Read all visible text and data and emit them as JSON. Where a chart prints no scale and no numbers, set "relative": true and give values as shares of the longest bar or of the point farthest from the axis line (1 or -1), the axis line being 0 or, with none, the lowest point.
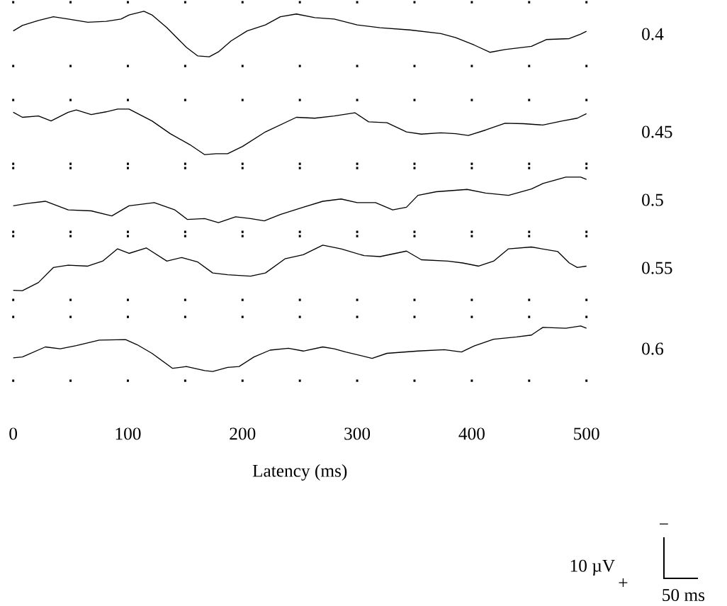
{
  "chart_data": [
    {
      "type": "line",
      "relative": true,
      "xlim": [
        0,
        500
      ],
      "xticks": [
        0,
        {
          "value": 50,
          "label": null
        },
        100,
        {
          "value": 150,
          "label": null
        },
        200,
        {
          "value": 250,
          "label": null
        },
        300,
        {
          "value": 350,
          "label": null
        },
        400,
        {
          "value": 450,
          "label": null
        },
        500
      ],
      "tick_labels": false,
      "series": [
        {
          "name": "0.4",
          "color": "#000000",
          "x": [
            0,
            8,
            22,
            35,
            48,
            65,
            81,
            94,
            101,
            114,
            121,
            134,
            151,
            161,
            171,
            179,
            190,
            204,
            220,
            233,
            247,
            263,
            280,
            300,
            320,
            346,
            373,
            386,
            402,
            416,
            429,
            452,
            465,
            485,
            495,
            500
          ],
          "values": [
            0.57,
            0.69,
            0.8,
            0.88,
            0.83,
            0.76,
            0.78,
            0.83,
            0.92,
            1,
            0.92,
            0.64,
            0.21,
            0.02,
            0,
            0.11,
            0.35,
            0.57,
            0.7,
            0.88,
            0.94,
            0.86,
            0.83,
            0.7,
            0.64,
            0.59,
            0.51,
            0.42,
            0.26,
            0.1,
            0.16,
            0.23,
            0.38,
            0.4,
            0.5,
            0.56
          ]
        }
      ]
    },
    {
      "type": "line",
      "relative": true,
      "xlim": [
        0,
        500
      ],
      "xticks": [
        0,
        {
          "value": 50,
          "label": null
        },
        100,
        {
          "value": 150,
          "label": null
        },
        200,
        {
          "value": 250,
          "label": null
        },
        300,
        {
          "value": 350,
          "label": null
        },
        400,
        {
          "value": 450,
          "label": null
        },
        500
      ],
      "tick_labels": false,
      "series": [
        {
          "name": "0.45",
          "color": "#000000",
          "x": [
            0,
            8,
            22,
            33,
            48,
            55,
            68,
            81,
            91,
            101,
            121,
            137,
            154,
            167,
            177,
            187,
            200,
            220,
            247,
            263,
            280,
            298,
            310,
            326,
            343,
            356,
            373,
            386,
            397,
            412,
            429,
            445,
            462,
            479,
            492,
            500
          ],
          "values": [
            0.93,
            0.82,
            0.85,
            0.74,
            0.93,
            0.98,
            0.88,
            0.94,
            1,
            1,
            0.74,
            0.46,
            0.22,
            0,
            0.02,
            0.02,
            0.18,
            0.5,
            0.82,
            0.8,
            0.85,
            0.92,
            0.72,
            0.7,
            0.5,
            0.45,
            0.48,
            0.46,
            0.42,
            0.54,
            0.69,
            0.68,
            0.65,
            0.74,
            0.8,
            0.9
          ]
        }
      ]
    },
    {
      "type": "line",
      "relative": true,
      "xlim": [
        0,
        500
      ],
      "xticks": [
        0,
        {
          "value": 50,
          "label": null
        },
        100,
        {
          "value": 150,
          "label": null
        },
        200,
        {
          "value": 250,
          "label": null
        },
        300,
        {
          "value": 350,
          "label": null
        },
        400,
        {
          "value": 450,
          "label": null
        },
        500
      ],
      "tick_labels": false,
      "series": [
        {
          "name": "0.5",
          "color": "#000000",
          "x": [
            0,
            12,
            28,
            48,
            68,
            86,
            101,
            123,
            141,
            152,
            167,
            179,
            194,
            207,
            219,
            233,
            253,
            270,
            286,
            300,
            316,
            331,
            343,
            353,
            369,
            396,
            412,
            432,
            452,
            462,
            482,
            495,
            500
          ],
          "values": [
            0.37,
            0.42,
            0.47,
            0.28,
            0.26,
            0.15,
            0.37,
            0.44,
            0.28,
            0.07,
            0.09,
            0,
            0.13,
            0.09,
            0.04,
            0.18,
            0.34,
            0.47,
            0.52,
            0.44,
            0.44,
            0.28,
            0.34,
            0.6,
            0.68,
            0.73,
            0.65,
            0.6,
            0.74,
            0.86,
            1,
            1,
            0.95
          ]
        }
      ]
    },
    {
      "type": "line",
      "relative": true,
      "xlim": [
        0,
        500
      ],
      "xticks": [
        0,
        {
          "value": 50,
          "label": null
        },
        100,
        {
          "value": 150,
          "label": null
        },
        200,
        {
          "value": 250,
          "label": null
        },
        300,
        {
          "value": 350,
          "label": null
        },
        400,
        {
          "value": 450,
          "label": null
        },
        500
      ],
      "tick_labels": false,
      "series": [
        {
          "name": "0.55",
          "color": "#000000",
          "x": [
            0,
            8,
            22,
            35,
            48,
            65,
            78,
            91,
            101,
            116,
            134,
            147,
            161,
            174,
            187,
            207,
            220,
            237,
            253,
            270,
            286,
            306,
            320,
            343,
            356,
            379,
            392,
            406,
            419,
            432,
            452,
            475,
            485,
            492,
            500
          ],
          "values": [
            0.01,
            0,
            0.18,
            0.51,
            0.56,
            0.54,
            0.65,
            0.92,
            0.82,
            0.94,
            0.65,
            0.73,
            0.63,
            0.39,
            0.35,
            0.32,
            0.39,
            0.7,
            0.79,
            1,
            0.92,
            0.77,
            0.75,
            0.87,
            0.68,
            0.65,
            0.61,
            0.54,
            0.65,
            0.92,
            0.96,
            0.86,
            0.61,
            0.51,
            0.54
          ]
        }
      ]
    },
    {
      "type": "line",
      "relative": true,
      "xlim": [
        0,
        500
      ],
      "xticks": [
        0,
        {
          "value": 50,
          "label": null
        },
        100,
        {
          "value": 150,
          "label": null
        },
        200,
        {
          "value": 250,
          "label": null
        },
        300,
        {
          "value": 350,
          "label": null
        },
        400,
        {
          "value": 450,
          "label": null
        },
        500
      ],
      "tick_labels": "x",
      "xlabel": "Latency (ms)",
      "annotations": [
        "10 µV",
        "+",
        "−",
        "50 ms"
      ],
      "series": [
        {
          "name": "0.6",
          "color": "#000000",
          "x": [
            0,
            8,
            28,
            41,
            55,
            75,
            98,
            108,
            121,
            139,
            151,
            167,
            174,
            187,
            197,
            210,
            224,
            240,
            253,
            270,
            280,
            290,
            313,
            326,
            353,
            376,
            391,
            402,
            419,
            439,
            452,
            462,
            482,
            495,
            500
          ],
          "values": [
            0.3,
            0.32,
            0.54,
            0.5,
            0.57,
            0.69,
            0.7,
            0.59,
            0.4,
            0.07,
            0.11,
            0.02,
            0,
            0.09,
            0.11,
            0.32,
            0.47,
            0.51,
            0.45,
            0.54,
            0.5,
            0.43,
            0.29,
            0.4,
            0.45,
            0.48,
            0.43,
            0.56,
            0.71,
            0.76,
            0.8,
            0.97,
            0.95,
            1,
            0.95
          ]
        }
      ]
    }
  ]
}
